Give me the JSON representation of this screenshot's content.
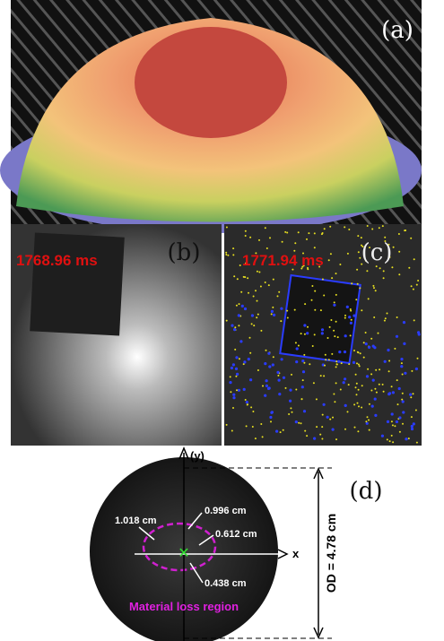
{
  "panels": {
    "a": {
      "label": "(a)"
    },
    "b": {
      "label": "(b)",
      "timestamp": "1768.96 ms"
    },
    "c": {
      "label": "(c)",
      "timestamp": "1771.94 ms"
    },
    "d": {
      "label": "(d)",
      "axis_y": "(y)",
      "axis_x": "x",
      "dimensions": [
        "1.018 cm",
        "0.996 cm",
        "0.612 cm",
        "0.438 cm"
      ],
      "region_label": "Material loss region",
      "od_label": "OD = 4.78 cm"
    }
  }
}
